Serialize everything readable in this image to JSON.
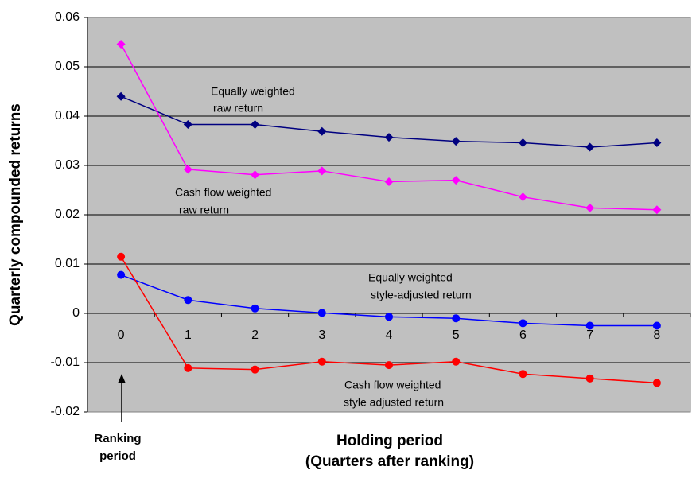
{
  "chart_data": {
    "type": "line",
    "y_label": "Quarterly compounded returns",
    "x_label_lines": [
      "Holding period",
      "(Quarters after ranking)"
    ],
    "ranking_label_lines": [
      "Ranking",
      "period"
    ],
    "categories": [
      "0",
      "1",
      "2",
      "3",
      "4",
      "5",
      "6",
      "7",
      "8"
    ],
    "series": [
      {
        "color": "#000080",
        "marker": "diamond",
        "values": [
          0.044,
          0.0383,
          0.0383,
          0.0369,
          0.0357,
          0.0349,
          0.0346,
          0.0337,
          0.0346
        ]
      },
      {
        "color": "#ff00ff",
        "marker": "diamond",
        "values": [
          0.0546,
          0.0292,
          0.0281,
          0.0289,
          0.0267,
          0.027,
          0.0236,
          0.0214,
          0.021
        ]
      },
      {
        "color": "#0000ff",
        "marker": "circle",
        "values": [
          0.0078,
          0.0027,
          0.001,
          0.0001,
          -0.0007,
          -0.001,
          -0.002,
          -0.0025,
          -0.0025
        ]
      },
      {
        "color": "#ff0000",
        "marker": "circle",
        "values": [
          0.0115,
          -0.0111,
          -0.0114,
          -0.0098,
          -0.0105,
          -0.0098,
          -0.0123,
          -0.0132,
          -0.0141
        ]
      }
    ],
    "annotations": [
      {
        "lines": [
          "Equally weighted",
          "raw return"
        ]
      },
      {
        "lines": [
          "Cash flow weighted",
          "raw return"
        ]
      },
      {
        "lines": [
          "Equally weighted",
          "style-adjusted return"
        ]
      },
      {
        "lines": [
          "Cash flow weighted",
          "style adjusted return"
        ]
      }
    ],
    "ylim": [
      -0.02,
      0.06
    ],
    "yticks": [
      -0.02,
      -0.01,
      0,
      0.01,
      0.02,
      0.03,
      0.04,
      0.05,
      0.06
    ],
    "grid": true
  }
}
